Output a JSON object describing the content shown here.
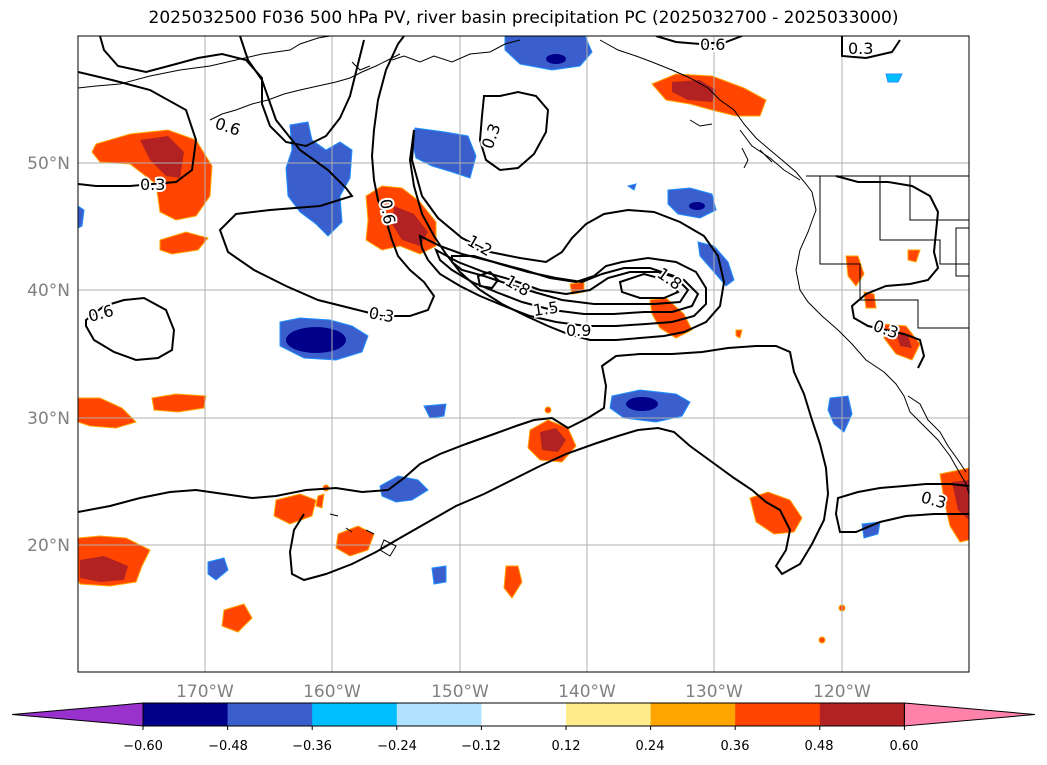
{
  "title": "2025032500 F036 500 hPa PV, river basin precipitation PC (2025032700 - 2025033000)",
  "map": {
    "projection": "PlateCarree",
    "lon_range": [
      -180,
      -110
    ],
    "lat_range": [
      10,
      60
    ],
    "lat_ticks": [
      "50°N",
      "40°N",
      "30°N",
      "20°N"
    ],
    "lon_ticks": [
      "170°W",
      "160°W",
      "150°W",
      "140°W",
      "130°W",
      "120°W"
    ],
    "grid": true,
    "contour_color": "#000000",
    "contour_labels": [
      "0.6",
      "0.3",
      "0.3",
      "0.3",
      "0.6",
      "0.6",
      "0.3",
      "1.2",
      "1.8",
      "1.5",
      "0.9",
      "1.8",
      "0.3",
      "0.3"
    ]
  },
  "colorbar": {
    "ticks": [
      "−0.60",
      "−0.48",
      "−0.36",
      "−0.24",
      "−0.12",
      "0.12",
      "0.24",
      "0.36",
      "0.48",
      "0.60"
    ],
    "colors": [
      "#9932cc",
      "#00008b",
      "#3a5fcd",
      "#00bfff",
      "#b0e2ff",
      "#ffffff",
      "#ffec8b",
      "#ffa500",
      "#ff4500",
      "#b22222",
      "#ff82ab"
    ],
    "extend": "both"
  }
}
